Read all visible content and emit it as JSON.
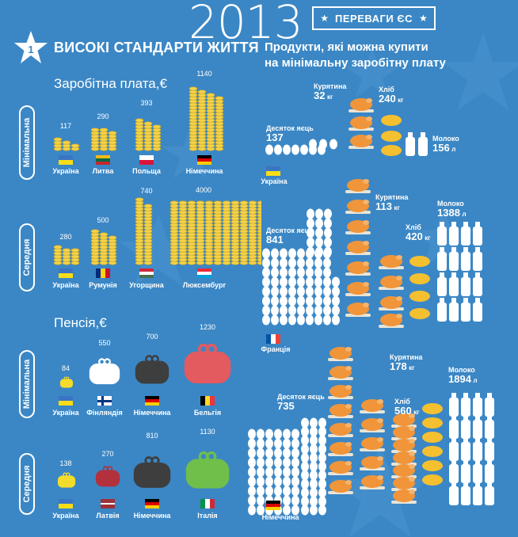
{
  "year": "2013",
  "banner": {
    "title": "ПЕРЕВАГИ ЄС"
  },
  "section": {
    "number": "1",
    "title": "ВИСОКІ СТАНДАРТИ ЖИТТЯ"
  },
  "salary": {
    "title": "Заробітна плата,€",
    "minimal": {
      "label": "Мінімальна",
      "countries": [
        {
          "name": "Україна",
          "value": "117"
        },
        {
          "name": "Литва",
          "value": "290"
        },
        {
          "name": "Польща",
          "value": "393"
        },
        {
          "name": "Німеччина",
          "value": "1140"
        }
      ]
    },
    "average": {
      "label": "Середня",
      "countries": [
        {
          "name": "Україна",
          "value": "280"
        },
        {
          "name": "Румунія",
          "value": "500"
        },
        {
          "name": "Угорщина",
          "value": "740"
        },
        {
          "name": "Люксембург",
          "value": "4000"
        }
      ]
    }
  },
  "pension": {
    "title": "Пенсія,€",
    "minimal": {
      "label": "Мінімальна",
      "countries": [
        {
          "name": "Україна",
          "value": "84"
        },
        {
          "name": "Фінляндія",
          "value": "550"
        },
        {
          "name": "Німеччина",
          "value": "700"
        },
        {
          "name": "Бельгія",
          "value": "1230"
        }
      ]
    },
    "average": {
      "label": "Середня",
      "countries": [
        {
          "name": "Україна",
          "value": "138"
        },
        {
          "name": "Латвія",
          "value": "270"
        },
        {
          "name": "Німеччина",
          "value": "810"
        },
        {
          "name": "Італія",
          "value": "1130"
        }
      ]
    }
  },
  "products": {
    "title_line1": "Продукти, які можна купити",
    "title_line2": "на мінімальну заробітну плату",
    "egg_label": "Десяток яєць",
    "chicken_label": "Курятина",
    "bread_label": "Хліб",
    "milk_label": "Молоко",
    "unit_kg": "кг",
    "unit_l": "л",
    "ukraine": {
      "country": "Україна",
      "eggs": "137",
      "chicken": "32",
      "bread": "240",
      "milk": "156"
    },
    "france": {
      "country": "Франція",
      "eggs": "841",
      "chicken": "113",
      "bread": "420",
      "milk": "1388"
    },
    "germany": {
      "country": "Німеччина",
      "eggs": "735",
      "chicken": "178",
      "bread": "560",
      "milk": "1894"
    }
  },
  "colors": {
    "background": "#3b87c5",
    "coin": "#f4d24a",
    "chicken": "#f0953a",
    "bread": "#f5c02f",
    "wallet_white": "#ffffff",
    "wallet_dark": "#3e3e3e",
    "wallet_red": "#e35a5f",
    "wallet_green": "#6fbf4a",
    "wallet_yellow": "#f5dc2c",
    "wallet_maroon": "#b3303d"
  }
}
